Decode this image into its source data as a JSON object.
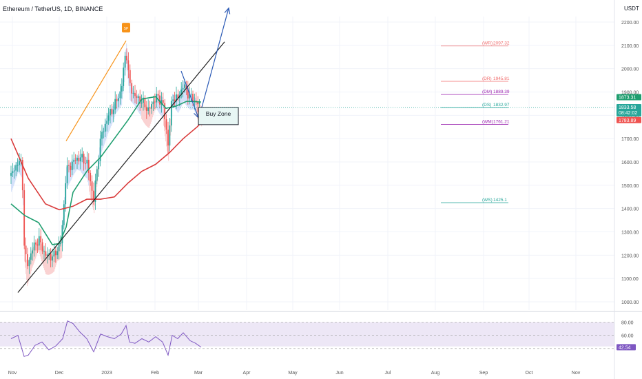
{
  "header": {
    "symbol_title": "Ethereum / TetherUS, 1D, BINANCE",
    "currency": "USDT"
  },
  "colors": {
    "up": "#26a69a",
    "down": "#ef5350",
    "ema_fast": "#1f9e6f",
    "ema_slow": "#d93a3a",
    "trend": "#222222",
    "orange": "#f7931a",
    "arrow_blue": "#2a59b5",
    "cloud_red": "#f8c5c5",
    "cloud_blue": "#c9daf8",
    "pivot_red": "#f06a6a",
    "pivot_purple": "#9c27b0",
    "pivot_green": "#26a69a",
    "rsi_line": "#7e57c2",
    "rsi_band": "#ede7f6",
    "grid": "#f0f3fa",
    "axis_text": "#555555"
  },
  "chart_data": {
    "type": "candlestick",
    "title": "Ethereum / TetherUS, 1D, BINANCE",
    "y_unit": "USDT",
    "ylim": [
      1000,
      2250
    ],
    "y_ticks": [
      "2200.00",
      "2100.00",
      "2000.00",
      "1900.00",
      "1800.00",
      "1700.00",
      "1600.00",
      "1500.00",
      "1400.00",
      "1300.00",
      "1200.00",
      "1100.00",
      "1000.00"
    ],
    "x_labels": [
      "Nov",
      "Dec",
      "2023",
      "Feb",
      "Mar",
      "Apr",
      "May",
      "Jun",
      "Jul",
      "Aug",
      "Sep",
      "Oct",
      "Nov"
    ],
    "price_path": [
      {
        "d": -10,
        "p": 1540
      },
      {
        "d": 0,
        "p": 1600
      },
      {
        "d": 6,
        "p": 1590
      },
      {
        "d": 9,
        "p": 1250
      },
      {
        "d": 13,
        "p": 1150
      },
      {
        "d": 20,
        "p": 1220
      },
      {
        "d": 30,
        "p": 1270
      },
      {
        "d": 40,
        "p": 1200
      },
      {
        "d": 52,
        "p": 1195
      },
      {
        "d": 63,
        "p": 1260
      },
      {
        "d": 70,
        "p": 1560
      },
      {
        "d": 80,
        "p": 1600
      },
      {
        "d": 90,
        "p": 1620
      },
      {
        "d": 100,
        "p": 1600
      },
      {
        "d": 110,
        "p": 1440
      },
      {
        "d": 120,
        "p": 1700
      },
      {
        "d": 130,
        "p": 1790
      },
      {
        "d": 140,
        "p": 1840
      },
      {
        "d": 150,
        "p": 1910
      },
      {
        "d": 157,
        "p": 2090
      },
      {
        "d": 162,
        "p": 1930
      },
      {
        "d": 170,
        "p": 1880
      },
      {
        "d": 180,
        "p": 1860
      },
      {
        "d": 190,
        "p": 1820
      },
      {
        "d": 200,
        "p": 1880
      },
      {
        "d": 210,
        "p": 1860
      },
      {
        "d": 218,
        "p": 1680
      },
      {
        "d": 224,
        "p": 1880
      },
      {
        "d": 232,
        "p": 1870
      },
      {
        "d": 240,
        "p": 1930
      },
      {
        "d": 250,
        "p": 1880
      },
      {
        "d": 258,
        "p": 1860
      },
      {
        "d": 266,
        "p": 1834
      }
    ],
    "ema_fast": [
      {
        "d": -10,
        "p": 1420
      },
      {
        "d": 10,
        "p": 1370
      },
      {
        "d": 30,
        "p": 1340
      },
      {
        "d": 50,
        "p": 1245
      },
      {
        "d": 60,
        "p": 1250
      },
      {
        "d": 70,
        "p": 1320
      },
      {
        "d": 80,
        "p": 1470
      },
      {
        "d": 100,
        "p": 1560
      },
      {
        "d": 120,
        "p": 1620
      },
      {
        "d": 140,
        "p": 1700
      },
      {
        "d": 160,
        "p": 1780
      },
      {
        "d": 180,
        "p": 1870
      },
      {
        "d": 200,
        "p": 1880
      },
      {
        "d": 215,
        "p": 1830
      },
      {
        "d": 230,
        "p": 1840
      },
      {
        "d": 245,
        "p": 1860
      },
      {
        "d": 266,
        "p": 1857
      }
    ],
    "ema_slow": [
      {
        "d": -10,
        "p": 1700
      },
      {
        "d": 15,
        "p": 1530
      },
      {
        "d": 40,
        "p": 1420
      },
      {
        "d": 60,
        "p": 1395
      },
      {
        "d": 80,
        "p": 1410
      },
      {
        "d": 100,
        "p": 1440
      },
      {
        "d": 120,
        "p": 1440
      },
      {
        "d": 140,
        "p": 1450
      },
      {
        "d": 160,
        "p": 1510
      },
      {
        "d": 180,
        "p": 1560
      },
      {
        "d": 200,
        "p": 1590
      },
      {
        "d": 220,
        "p": 1640
      },
      {
        "d": 240,
        "p": 1700
      },
      {
        "d": 260,
        "p": 1750
      },
      {
        "d": 266,
        "p": 1768
      }
    ],
    "trendline": [
      {
        "d": 0,
        "p": 1040
      },
      {
        "d": 300,
        "p": 2115
      }
    ],
    "orange_line": [
      {
        "d": 70,
        "p": 1690
      },
      {
        "d": 157,
        "p": 2120
      }
    ],
    "blue_down_arrow": [
      {
        "d": 237,
        "p": 1990
      },
      {
        "d": 262,
        "p": 1790
      }
    ],
    "blue_up_arrow": [
      {
        "d": 262,
        "p": 1780
      },
      {
        "d": 306,
        "p": 2260
      }
    ],
    "buy_zone": {
      "label": "Buy Zone",
      "d_start": 262,
      "d_end": 320,
      "p_low": 1760,
      "p_high": 1834
    },
    "pivots": [
      {
        "label": "(WR)",
        "value": "2097.32",
        "p": 2097.32,
        "color": "#f06a6a"
      },
      {
        "label": "(DR)",
        "value": "1945.81",
        "p": 1945.81,
        "color": "#f06a6a"
      },
      {
        "label": "(DM)",
        "value": "1889.39",
        "p": 1889.39,
        "color": "#9c27b0"
      },
      {
        "label": "(DS)",
        "value": "1832.97",
        "p": 1832.97,
        "color": "#26a69a"
      },
      {
        "label": "(WM)",
        "value": "1761.21",
        "p": 1761.21,
        "color": "#9c27b0"
      },
      {
        "label": "(WS)",
        "value": "1425.1",
        "p": 1425.1,
        "color": "#26a69a"
      }
    ],
    "price_badges": [
      {
        "value": "1873.31",
        "p": 1873.31,
        "color": "#1f9e6f"
      },
      {
        "value": "1833.58",
        "sub": "08:42:02",
        "p": 1833.58,
        "color": "#26a69a"
      },
      {
        "value": "1783.89",
        "p": 1783.89,
        "color": "#ef5350"
      }
    ],
    "split_marker": "SP",
    "rsi": {
      "ticks": [
        "80.00",
        "60.00"
      ],
      "levels": [
        80,
        60
      ],
      "current": "42.54",
      "ylim": [
        20,
        90
      ],
      "path": [
        {
          "d": -10,
          "p": 55
        },
        {
          "d": 0,
          "p": 60
        },
        {
          "d": 9,
          "p": 28
        },
        {
          "d": 15,
          "p": 30
        },
        {
          "d": 25,
          "p": 45
        },
        {
          "d": 35,
          "p": 50
        },
        {
          "d": 45,
          "p": 38
        },
        {
          "d": 55,
          "p": 44
        },
        {
          "d": 65,
          "p": 55
        },
        {
          "d": 72,
          "p": 82
        },
        {
          "d": 80,
          "p": 78
        },
        {
          "d": 90,
          "p": 65
        },
        {
          "d": 100,
          "p": 55
        },
        {
          "d": 110,
          "p": 35
        },
        {
          "d": 120,
          "p": 62
        },
        {
          "d": 130,
          "p": 58
        },
        {
          "d": 140,
          "p": 55
        },
        {
          "d": 150,
          "p": 62
        },
        {
          "d": 157,
          "p": 75
        },
        {
          "d": 162,
          "p": 50
        },
        {
          "d": 170,
          "p": 48
        },
        {
          "d": 180,
          "p": 55
        },
        {
          "d": 190,
          "p": 50
        },
        {
          "d": 200,
          "p": 58
        },
        {
          "d": 210,
          "p": 50
        },
        {
          "d": 218,
          "p": 30
        },
        {
          "d": 224,
          "p": 60
        },
        {
          "d": 232,
          "p": 55
        },
        {
          "d": 240,
          "p": 64
        },
        {
          "d": 250,
          "p": 52
        },
        {
          "d": 258,
          "p": 48
        },
        {
          "d": 266,
          "p": 42
        }
      ]
    }
  }
}
